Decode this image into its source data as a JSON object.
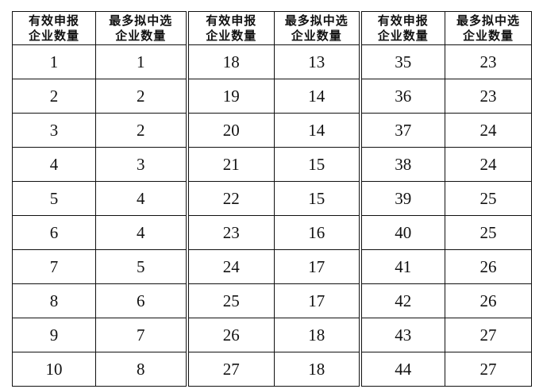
{
  "headers": [
    [
      "有效申报",
      "企业数量"
    ],
    [
      "最多拟中选",
      "企业数量"
    ],
    [
      "有效申报",
      "企业数量"
    ],
    [
      "最多拟中选",
      "企业数量"
    ],
    [
      "有效申报",
      "企业数量"
    ],
    [
      "最多拟中选",
      "企业数量"
    ]
  ],
  "rows": [
    [
      "1",
      "1",
      "18",
      "13",
      "35",
      "23"
    ],
    [
      "2",
      "2",
      "19",
      "14",
      "36",
      "23"
    ],
    [
      "3",
      "2",
      "20",
      "14",
      "37",
      "24"
    ],
    [
      "4",
      "3",
      "21",
      "15",
      "38",
      "24"
    ],
    [
      "5",
      "4",
      "22",
      "15",
      "39",
      "25"
    ],
    [
      "6",
      "4",
      "23",
      "16",
      "40",
      "25"
    ],
    [
      "7",
      "5",
      "24",
      "17",
      "41",
      "26"
    ],
    [
      "8",
      "6",
      "25",
      "17",
      "42",
      "26"
    ],
    [
      "9",
      "7",
      "26",
      "18",
      "43",
      "27"
    ],
    [
      "10",
      "8",
      "27",
      "18",
      "44",
      "27"
    ]
  ]
}
